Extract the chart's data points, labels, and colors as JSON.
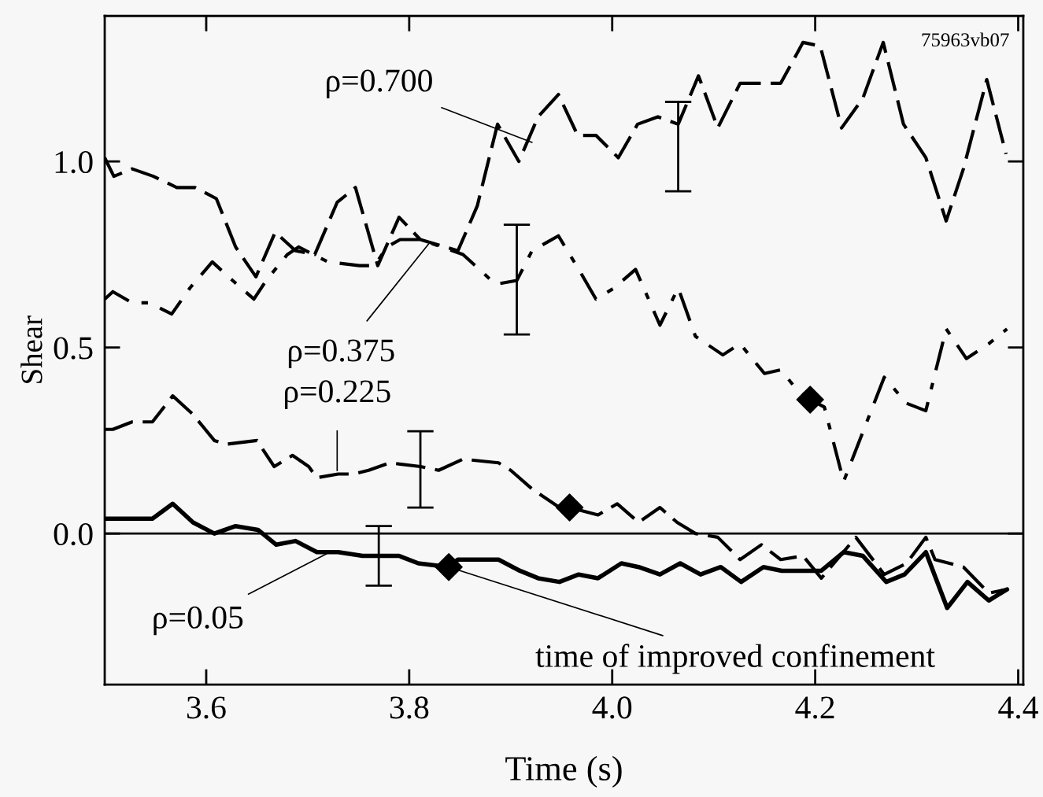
{
  "chart_data": {
    "type": "line",
    "xlabel": "Time (s)",
    "ylabel": "Shear",
    "xlim": [
      3.5,
      4.405
    ],
    "xticks": [
      3.6,
      3.8,
      {
        "value": 4.0,
        "label": "4.0"
      },
      4.2,
      4.4
    ],
    "ylim": [
      -0.406,
      1.391
    ],
    "yticks": [
      {
        "value": 0,
        "label": "0.0"
      },
      0.5,
      {
        "value": 1,
        "label": "1.0"
      }
    ],
    "grid": false,
    "legend": false,
    "marker": "none",
    "ref_lines": [
      {
        "axis": "y",
        "value": 0,
        "color": "#000000",
        "line_style": "solid"
      }
    ],
    "series": [
      {
        "color": "#000000",
        "line_style": "dashed",
        "x": [
          3.5,
          3.509,
          3.527,
          3.548,
          3.571,
          3.589,
          3.61,
          3.629,
          3.649,
          3.668,
          3.688,
          3.707,
          3.729,
          3.747,
          3.769,
          3.79,
          3.811,
          3.848,
          3.867,
          3.887,
          3.908,
          3.927,
          3.947,
          3.966,
          3.984,
          4.006,
          4.025,
          4.045,
          4.065,
          4.085,
          4.104,
          4.126,
          4.166,
          4.188,
          4.205,
          4.226,
          4.247,
          4.267,
          4.287,
          4.309,
          4.329,
          4.346,
          4.369,
          4.388
        ],
        "values": [
          1.01,
          0.96,
          0.98,
          0.96,
          0.93,
          0.93,
          0.9,
          0.77,
          0.69,
          0.81,
          0.76,
          0.75,
          0.89,
          0.93,
          0.72,
          0.85,
          0.79,
          0.76,
          0.88,
          1.1,
          1.0,
          1.12,
          1.18,
          1.07,
          1.07,
          1.01,
          1.1,
          1.12,
          1.1,
          1.23,
          1.09,
          1.21,
          1.21,
          1.32,
          1.31,
          1.09,
          1.17,
          1.32,
          1.1,
          1.01,
          0.84,
          0.98,
          1.22,
          1.02
        ],
        "errors": [
          null,
          null,
          null,
          null,
          null,
          null,
          null,
          null,
          null,
          null,
          null,
          null,
          null,
          null,
          null,
          null,
          null,
          null,
          null,
          null,
          null,
          null,
          null,
          null,
          null,
          null,
          null,
          null,
          [
            0.92,
            1.16
          ],
          null,
          null,
          null,
          null,
          null,
          null,
          null,
          null,
          null,
          null,
          null,
          null,
          null,
          null,
          null
        ]
      },
      {
        "color": "#000000",
        "line_style": "dashdot",
        "x": [
          3.5,
          3.508,
          3.527,
          3.544,
          3.566,
          3.584,
          3.606,
          3.626,
          3.647,
          3.659,
          3.68,
          3.691,
          3.72,
          3.751,
          3.766,
          3.778,
          3.791,
          3.811,
          3.853,
          3.885,
          3.906,
          3.921,
          3.947,
          3.967,
          3.984,
          4.002,
          4.023,
          4.047,
          4.065,
          4.082,
          4.109,
          4.126,
          4.15,
          4.166,
          4.181,
          4.195,
          4.209,
          4.228,
          4.268,
          4.29,
          4.309,
          4.329,
          4.349,
          4.371,
          4.389
        ],
        "values": [
          0.63,
          0.65,
          0.62,
          0.62,
          0.59,
          0.66,
          0.73,
          0.68,
          0.63,
          0.68,
          0.75,
          0.77,
          0.73,
          0.72,
          0.72,
          0.77,
          0.79,
          0.79,
          0.75,
          0.67,
          0.68,
          0.76,
          0.8,
          0.71,
          0.63,
          0.66,
          0.71,
          0.56,
          0.66,
          0.53,
          0.48,
          0.51,
          0.43,
          0.44,
          0.39,
          0.36,
          0.34,
          0.14,
          0.42,
          0.35,
          0.33,
          0.55,
          0.47,
          0.51,
          0.55
        ],
        "errors": [
          null,
          null,
          null,
          null,
          null,
          null,
          null,
          null,
          null,
          null,
          null,
          null,
          null,
          null,
          null,
          null,
          null,
          null,
          null,
          null,
          [
            0.535,
            0.83
          ],
          null,
          null,
          null,
          null,
          null,
          null,
          null,
          null,
          null,
          null,
          null,
          null,
          null,
          null,
          null,
          null,
          null,
          null,
          null,
          null,
          null,
          null,
          null,
          null
        ]
      },
      {
        "color": "#000000",
        "line_style": "dashed",
        "x": [
          3.5,
          3.508,
          3.527,
          3.547,
          3.567,
          3.587,
          3.608,
          3.62,
          3.65,
          3.667,
          3.685,
          3.701,
          3.709,
          3.73,
          3.745,
          3.76,
          3.781,
          3.811,
          3.829,
          3.853,
          3.888,
          3.9,
          3.921,
          3.948,
          3.958,
          3.986,
          4.005,
          4.026,
          4.047,
          4.064,
          4.082,
          4.104,
          4.126,
          4.147,
          4.166,
          4.188,
          4.206,
          4.24,
          4.268,
          4.29,
          4.309,
          4.318,
          4.346,
          4.371,
          4.389
        ],
        "values": [
          0.28,
          0.28,
          0.3,
          0.3,
          0.37,
          0.32,
          0.25,
          0.24,
          0.25,
          0.18,
          0.21,
          0.18,
          0.15,
          0.16,
          0.16,
          0.17,
          0.19,
          0.18,
          0.17,
          0.2,
          0.19,
          0.17,
          0.12,
          0.07,
          0.07,
          0.05,
          0.08,
          0.03,
          0.07,
          0.03,
          0.0,
          -0.01,
          -0.07,
          -0.03,
          -0.07,
          -0.06,
          -0.12,
          -0.01,
          -0.11,
          -0.08,
          -0.01,
          -0.07,
          -0.09,
          -0.16,
          -0.15
        ],
        "errors": [
          null,
          null,
          null,
          null,
          null,
          null,
          null,
          null,
          null,
          null,
          null,
          null,
          null,
          null,
          null,
          null,
          null,
          [
            0.07,
            0.275
          ],
          null,
          null,
          null,
          null,
          null,
          null,
          null,
          null,
          null,
          null,
          null,
          null,
          null,
          null,
          null,
          null,
          null,
          null,
          null,
          null,
          null,
          null,
          null,
          null,
          null,
          null,
          null
        ]
      },
      {
        "color": "#000000",
        "line_style": "solid",
        "x": [
          3.5,
          3.527,
          3.547,
          3.567,
          3.587,
          3.608,
          3.629,
          3.651,
          3.669,
          3.688,
          3.709,
          3.73,
          3.754,
          3.77,
          3.79,
          3.809,
          3.839,
          3.848,
          3.888,
          3.909,
          3.927,
          3.948,
          3.967,
          3.986,
          4.009,
          4.026,
          4.047,
          4.067,
          4.087,
          4.107,
          4.127,
          4.149,
          4.167,
          4.188,
          4.206,
          4.228,
          4.247,
          4.27,
          4.288,
          4.309,
          4.33,
          4.35,
          4.371,
          4.389
        ],
        "values": [
          0.04,
          0.04,
          0.04,
          0.08,
          0.03,
          0.0,
          0.02,
          0.01,
          -0.03,
          -0.02,
          -0.05,
          -0.05,
          -0.06,
          -0.06,
          -0.06,
          -0.08,
          -0.09,
          -0.07,
          -0.07,
          -0.1,
          -0.12,
          -0.13,
          -0.11,
          -0.12,
          -0.08,
          -0.09,
          -0.11,
          -0.08,
          -0.11,
          -0.09,
          -0.13,
          -0.09,
          -0.1,
          -0.1,
          -0.1,
          -0.05,
          -0.06,
          -0.13,
          -0.11,
          -0.05,
          -0.2,
          -0.13,
          -0.18,
          -0.15
        ],
        "errors": [
          null,
          null,
          null,
          null,
          null,
          null,
          null,
          null,
          null,
          null,
          null,
          null,
          null,
          [
            -0.14,
            0.02
          ],
          null,
          null,
          null,
          null,
          null,
          null,
          null,
          null,
          null,
          null,
          null,
          null,
          null,
          null,
          null,
          null,
          null,
          null,
          null,
          null,
          null,
          null,
          null,
          null,
          null,
          null,
          null,
          null,
          null,
          null
        ]
      },
      {
        "type": "scatter",
        "marker": "diamond",
        "color": "#000000",
        "x": [
          3.839,
          3.958,
          4.195
        ],
        "values": [
          -0.09,
          0.07,
          0.36
        ]
      }
    ],
    "annotations": [
      {
        "text": "ρ=0.700",
        "x": 3.921,
        "y": 1.051
      },
      {
        "text": "ρ=0.375",
        "x": 3.819,
        "y": 0.778
      },
      {
        "text": "ρ=0.225",
        "x": 3.729,
        "y": 0.169
      },
      {
        "text": "ρ=0.05",
        "x": 3.721,
        "y": -0.051
      },
      {
        "text": "time of improved confinement",
        "x": 3.839,
        "y": -0.09
      },
      "75963vb07"
    ]
  }
}
